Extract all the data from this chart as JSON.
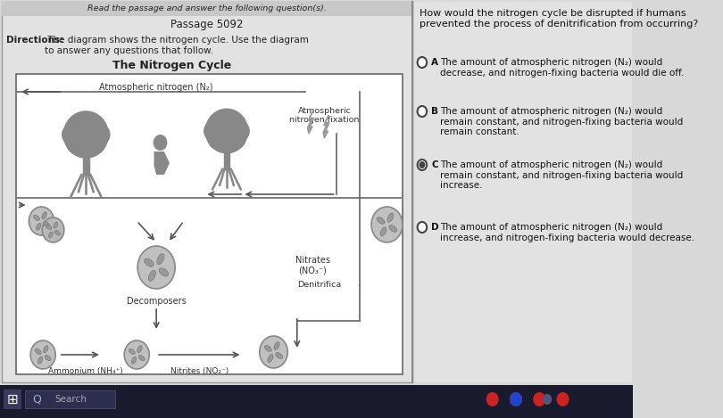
{
  "bg_color": "#d8d8d8",
  "left_panel_bg": "#e4e4e4",
  "right_panel_bg": "#e4e4e4",
  "header_text": "Read the passage and answer the following question(s).",
  "passage_id": "Passage 5092",
  "directions_bold": "Directions:",
  "directions_rest": " The diagram shows the nitrogen cycle. Use the diagram\nto answer any questions that follow.",
  "diagram_title": "The Nitrogen Cycle",
  "question_text": "How would the nitrogen cycle be disrupted if humans\nprevented the process of denitrification from occurring?",
  "options": [
    {
      "letter": "A",
      "text": "The amount of atmospheric nitrogen (N₂) would\ndecrease, and nitrogen-fixing bacteria would die off.",
      "selected": false
    },
    {
      "letter": "B",
      "text": "The amount of atmospheric nitrogen (N₂) would\nremain constant, and nitrogen-fixing bacteria would\nremain constant.",
      "selected": false
    },
    {
      "letter": "C",
      "text": "The amount of atmospheric nitrogen (N₂) would\nremain constant, and nitrogen-fixing bacteria would\nincrease.",
      "selected": true
    },
    {
      "letter": "D",
      "text": "The amount of atmospheric nitrogen (N₂) would\nincrease, and nitrogen-fixing bacteria would decrease.",
      "selected": false
    }
  ],
  "diagram_labels": {
    "atmospheric_nitrogen": "Atmospheric nitrogen (N₂)",
    "atm_nitrogen_fixation": "Atmospheric\nnitrogen fixation",
    "decomposers": "Decomposers",
    "nitrates": "Nitrates\n(NO₃⁻)",
    "denitrifica": "Denitrifica",
    "ammonium": "Ammonium (NH₄⁺)",
    "nitrites": "Nitrites (NO₂⁻)"
  },
  "tree_color": "#888888",
  "circle_color": "#aaaaaa",
  "arrow_color": "#555555",
  "line_color": "#666666",
  "taskbar_bg": "#1a1a2e",
  "search_text": "Search"
}
